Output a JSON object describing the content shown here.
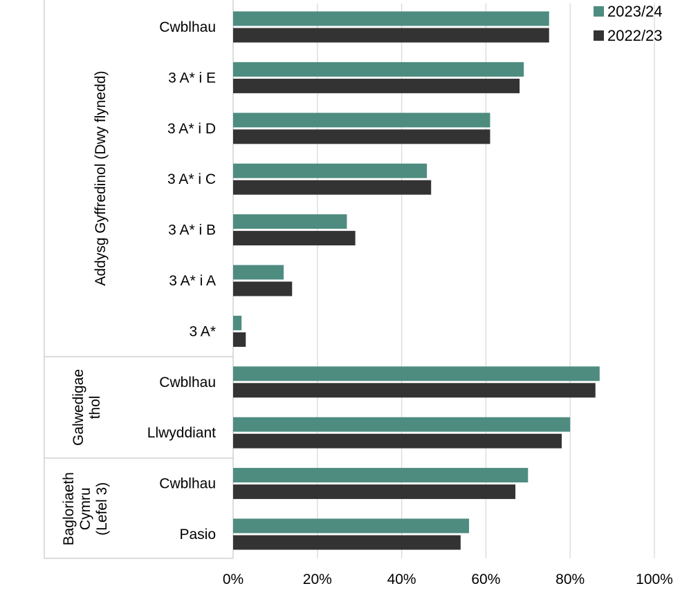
{
  "chart_data": {
    "type": "bar",
    "orientation": "horizontal",
    "groups": [
      {
        "label_lines": [
          "Addysg Gyffredinol (Dwy flynedd)"
        ],
        "categories": [
          "Cwblhau",
          "3 A* i E",
          "3 A* i D",
          "3 A* i C",
          "3 A* i B",
          "3 A* i A",
          "3 A*"
        ]
      },
      {
        "label_lines": [
          "Galwedigae",
          "thol"
        ],
        "categories": [
          "Cwblhau",
          "Llwyddiant"
        ]
      },
      {
        "label_lines": [
          "Bagloriaeth",
          "Cymru",
          "(Lefel 3)"
        ],
        "categories": [
          "Cwblhau",
          "Pasio"
        ]
      }
    ],
    "series": [
      {
        "name": "2023/24",
        "color": "#4e8c80",
        "values": [
          75,
          69,
          61,
          46,
          27,
          12,
          2,
          87,
          80,
          70,
          56
        ]
      },
      {
        "name": "2022/23",
        "color": "#333333",
        "values": [
          75,
          68,
          61,
          47,
          29,
          14,
          3,
          86,
          78,
          67,
          54
        ]
      }
    ],
    "xlim": [
      0,
      100
    ],
    "xticks": [
      "0%",
      "20%",
      "40%",
      "60%",
      "80%",
      "100%"
    ],
    "grid": true,
    "legend_position": "top-right"
  }
}
